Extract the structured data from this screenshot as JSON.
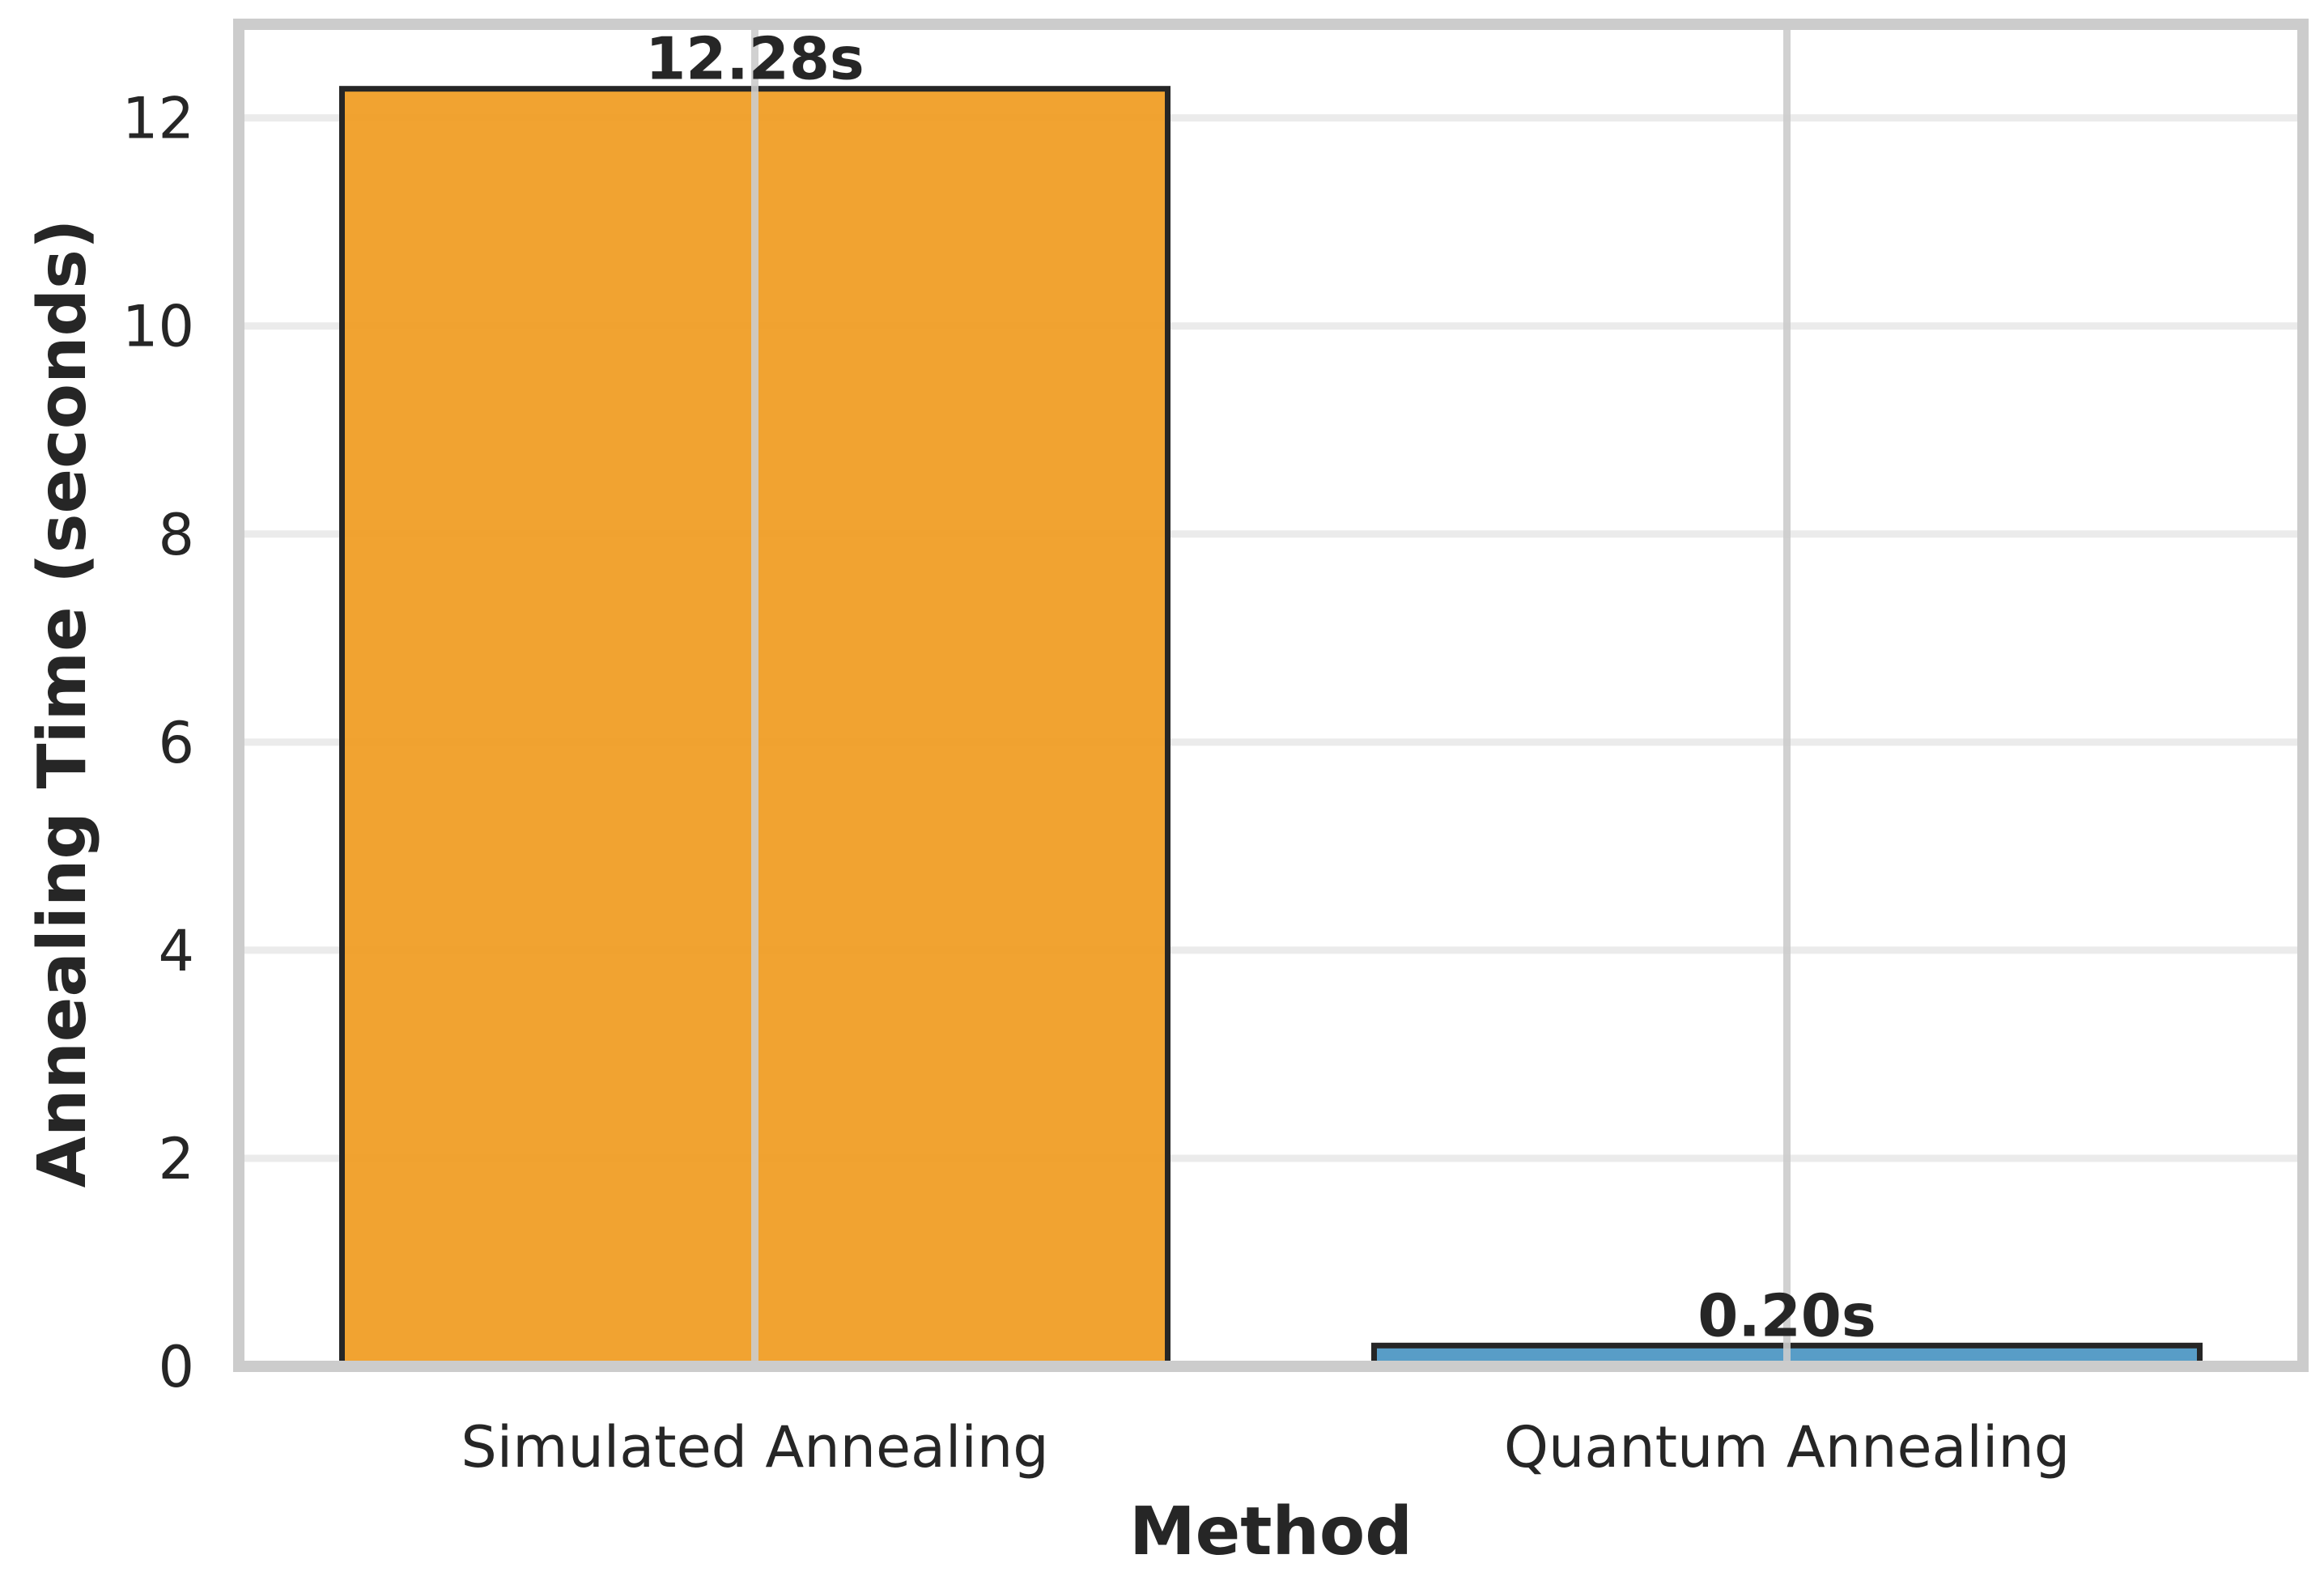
{
  "chart_data": {
    "type": "bar",
    "title": "",
    "xlabel": "Method",
    "ylabel": "Annealing Time (seconds)",
    "categories": [
      "Simulated Annealing",
      "Quantum Annealing"
    ],
    "values": [
      12.28,
      0.2
    ],
    "data_labels": [
      "12.28s",
      "0.20s"
    ],
    "colors": [
      "#f09b1f",
      "#4a95c2"
    ],
    "edge_color": "#262626",
    "ylim": [
      0,
      12.9
    ],
    "yticks": [
      0,
      2,
      4,
      6,
      8,
      10,
      12
    ],
    "grid": true
  }
}
